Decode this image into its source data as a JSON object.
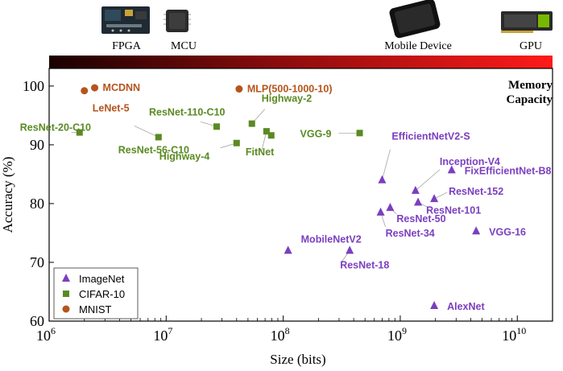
{
  "chart_data": {
    "type": "scatter",
    "xscale": "log",
    "xlabel": "Size (bits)",
    "ylabel": "Accuracy (%)",
    "xlim": [
      1000000,
      20000000000
    ],
    "ylim": [
      60,
      103
    ],
    "x_ticks": [
      {
        "value": 1000000,
        "base": "10",
        "exp": "6"
      },
      {
        "value": 10000000,
        "base": "10",
        "exp": "7"
      },
      {
        "value": 100000000,
        "base": "10",
        "exp": "8"
      },
      {
        "value": 1000000000,
        "base": "10",
        "exp": "9"
      },
      {
        "value": 10000000000,
        "base": "10",
        "exp": "10"
      }
    ],
    "y_ticks": [
      60,
      70,
      80,
      90,
      100
    ],
    "memory_capacity_label": [
      "Memory",
      "Capacity"
    ],
    "devices": [
      {
        "name": "FPGA",
        "x_pos": "left"
      },
      {
        "name": "MCU",
        "x_pos": "left"
      },
      {
        "name": "Mobile Device",
        "x_pos": "right"
      },
      {
        "name": "GPU",
        "x_pos": "far-right"
      }
    ],
    "series": [
      {
        "name": "ImageNet",
        "marker": "triangle",
        "color": "#7b3fbf",
        "points": [
          {
            "label": "MobileNetV2",
            "x": 110000000,
            "y": 72
          },
          {
            "label": "ResNet-18",
            "x": 370000000,
            "y": 72
          },
          {
            "label": "ResNet-34",
            "x": 680000000,
            "y": 78.5
          },
          {
            "label": "ResNet-50",
            "x": 820000000,
            "y": 79.3
          },
          {
            "label": "EfficientNetV2-S",
            "x": 700000000,
            "y": 84
          },
          {
            "label": "Inception-V4",
            "x": 1350000000,
            "y": 82.2
          },
          {
            "label": "ResNet-101",
            "x": 1420000000,
            "y": 80.2
          },
          {
            "label": "ResNet-152",
            "x": 1950000000,
            "y": 80.8
          },
          {
            "label": "FixEfficientNet-B8",
            "x": 2750000000,
            "y": 85.7
          },
          {
            "label": "VGG-16",
            "x": 4450000000,
            "y": 75.3
          },
          {
            "label": "AlexNet",
            "x": 1950000000,
            "y": 62.6
          }
        ]
      },
      {
        "name": "CIFAR-10",
        "marker": "square",
        "color": "#5a8a22",
        "points": [
          {
            "label": "ResNet-20-C10",
            "x": 1820000,
            "y": 92.1
          },
          {
            "label": "ResNet-56-C10",
            "x": 8600000,
            "y": 91.3
          },
          {
            "label": "ResNet-110-C10",
            "x": 27000000,
            "y": 93.1
          },
          {
            "label": "Highway-4",
            "x": 40000000,
            "y": 90.3
          },
          {
            "label": "Highway-2",
            "x": 54000000,
            "y": 93.6
          },
          {
            "label": "FitNet",
            "x": 72000000,
            "y": 92.3
          },
          {
            "label": "FitNet",
            "x": 79000000,
            "y": 91.6
          },
          {
            "label": "VGG-9",
            "x": 450000000,
            "y": 92
          }
        ]
      },
      {
        "name": "MNIST",
        "marker": "circle",
        "color": "#b5541c",
        "points": [
          {
            "label": "LeNet-5",
            "x": 2000000,
            "y": 99.2
          },
          {
            "label": "MCDNN",
            "x": 2450000,
            "y": 99.7
          },
          {
            "label": "MLP(500-1000-10)",
            "x": 42000000,
            "y": 99.5
          }
        ]
      }
    ],
    "annotations": [
      {
        "text": "MCDNN",
        "series": "MNIST"
      },
      {
        "text": "LeNet-5",
        "series": "MNIST"
      },
      {
        "text": "MLP(500-1000-10)",
        "series": "MNIST"
      },
      {
        "text": "ResNet-110-C10",
        "series": "CIFAR-10"
      },
      {
        "text": "Highway-2",
        "series": "CIFAR-10"
      },
      {
        "text": "ResNet-20-C10",
        "series": "CIFAR-10"
      },
      {
        "text": "ResNet-56-C10",
        "series": "CIFAR-10"
      },
      {
        "text": "VGG-9",
        "series": "CIFAR-10"
      },
      {
        "text": "Highway-4",
        "series": "CIFAR-10"
      },
      {
        "text": "FitNet",
        "series": "CIFAR-10"
      },
      {
        "text": "EfficientNetV2-S",
        "series": "ImageNet"
      },
      {
        "text": "Inception-V4",
        "series": "ImageNet"
      },
      {
        "text": "FixEfficientNet-B8",
        "series": "ImageNet"
      },
      {
        "text": "ResNet-152",
        "series": "ImageNet"
      },
      {
        "text": "ResNet-101",
        "series": "ImageNet"
      },
      {
        "text": "ResNet-50",
        "series": "ImageNet"
      },
      {
        "text": "ResNet-34",
        "series": "ImageNet"
      },
      {
        "text": "VGG-16",
        "series": "ImageNet"
      },
      {
        "text": "MobileNetV2",
        "series": "ImageNet"
      },
      {
        "text": "ResNet-18",
        "series": "ImageNet"
      },
      {
        "text": "AlexNet",
        "series": "ImageNet"
      }
    ],
    "legend": {
      "placement": "bottom-left",
      "entries": [
        {
          "name": "ImageNet",
          "marker": "triangle",
          "color": "#7b3fbf"
        },
        {
          "name": "CIFAR-10",
          "marker": "square",
          "color": "#5a8a22"
        },
        {
          "name": "MNIST",
          "marker": "circle",
          "color": "#b5541c"
        }
      ]
    },
    "gradient_colors": [
      "#1a0000",
      "#7a0a0a",
      "#ff1a1a"
    ]
  }
}
